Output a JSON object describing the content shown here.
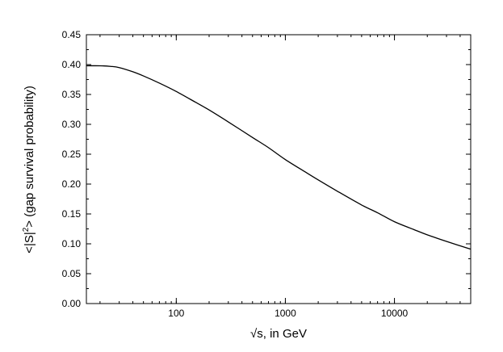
{
  "chart_data": {
    "type": "line",
    "title": "",
    "xlabel": "√s, in GeV",
    "ylabel_parts": {
      "prefix": "<|S|",
      "superscript": "2",
      "suffix": "> (gap survival probability)"
    },
    "xscale": "log",
    "xlim": [
      15,
      50000
    ],
    "ylim": [
      0,
      0.45
    ],
    "grid": false,
    "legend": "none",
    "line_color": "#000000",
    "xticks_major": [
      {
        "value": 100,
        "label": "100"
      },
      {
        "value": 1000,
        "label": "1000"
      },
      {
        "value": 10000,
        "label": "10000"
      }
    ],
    "yticks": [
      {
        "value": 0.0,
        "label": "0.00"
      },
      {
        "value": 0.05,
        "label": "0.05"
      },
      {
        "value": 0.1,
        "label": "0.10"
      },
      {
        "value": 0.15,
        "label": "0.15"
      },
      {
        "value": 0.2,
        "label": "0.20"
      },
      {
        "value": 0.25,
        "label": "0.25"
      },
      {
        "value": 0.3,
        "label": "0.30"
      },
      {
        "value": 0.35,
        "label": "0.35"
      },
      {
        "value": 0.4,
        "label": "0.40"
      },
      {
        "value": 0.45,
        "label": "0.45"
      }
    ],
    "series": [
      {
        "x": [
          15,
          20,
          25,
          30,
          40,
          50,
          70,
          100,
          150,
          200,
          300,
          500,
          700,
          1000,
          1500,
          2000,
          3000,
          5000,
          7000,
          10000,
          15000,
          20000,
          30000,
          50000
        ],
        "y": [
          0.398,
          0.398,
          0.397,
          0.395,
          0.388,
          0.381,
          0.369,
          0.355,
          0.337,
          0.324,
          0.304,
          0.278,
          0.261,
          0.241,
          0.221,
          0.207,
          0.188,
          0.165,
          0.152,
          0.137,
          0.124,
          0.115,
          0.104,
          0.091
        ]
      }
    ]
  }
}
